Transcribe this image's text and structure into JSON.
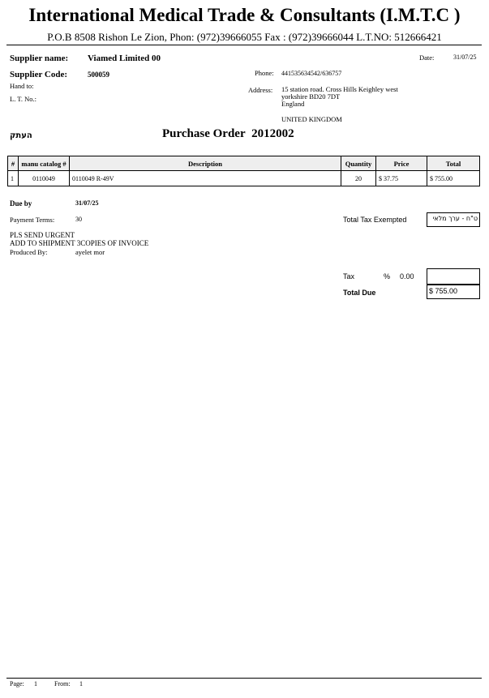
{
  "header": {
    "company": "International Medical Trade & Consultants (I.M.T.C )",
    "contact_line": "P.O.B 8508  Rishon Le Zion, Phon: (972)39666055 Fax : (972)39666044  L.T.NO: 512666421"
  },
  "supplier": {
    "name_label": "Supplier name:",
    "name": "Viamed Limited 00",
    "code_label": "Supplier Code:",
    "code": "500059",
    "hand_to_label": "Hand to:",
    "lt_no_label": "L. T. No.:",
    "date_label": "Date:",
    "date": "31/07/25",
    "phone_label": "Phone:",
    "phone": "441535634542/636757",
    "address_label": "Address:",
    "address_lines": [
      "15 station road. Cross Hills Keighley west",
      "yorkshire BD20 7DT",
      "England"
    ],
    "country": "UNITED KINGDOM"
  },
  "copy_label": "העתק",
  "order": {
    "title": "Purchase Order",
    "number": "2012002"
  },
  "table": {
    "headers": [
      "#",
      "manu catalog #",
      "Description",
      "Quantity",
      "Price",
      "Total"
    ],
    "rows": [
      [
        "1",
        "0110049",
        "0110049 R-49V",
        "20",
        "$ 37.75",
        "$ 755.00"
      ]
    ]
  },
  "due": {
    "label": "Due by",
    "value": "31/07/25"
  },
  "payment": {
    "label": "Payment Terms:",
    "value": "30"
  },
  "notes": [
    "PLS SEND URGENT",
    "ADD TO SHIPMENT 3COPIES OF INVOICE"
  ],
  "produced": {
    "label": "Produced By:",
    "value": "ayelet mor"
  },
  "totals": {
    "tax_exempt_label": "Total Tax Exempted",
    "tax_exempt_value": "ט\"ח - ערך מלאי",
    "tax_label": "Tax",
    "tax_pct_symbol": "%",
    "tax_pct": "0.00",
    "tax_value": "",
    "due_label": "Total Due",
    "due_value": "$ 755.00"
  },
  "footer": {
    "page_label": "Page:",
    "page": "1",
    "from_label": "From:",
    "from": "1"
  }
}
